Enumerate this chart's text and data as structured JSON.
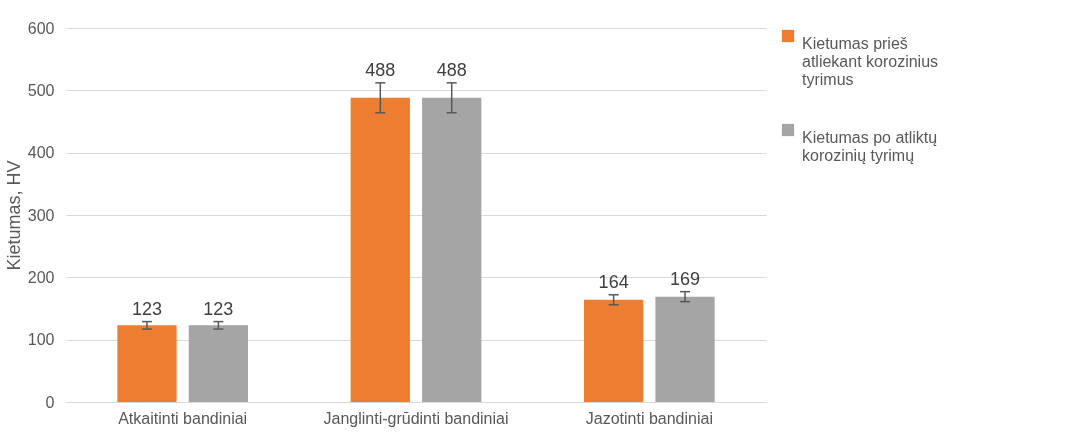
{
  "chart_data": {
    "type": "bar",
    "ylabel": "Kietumas, HV",
    "categories": [
      "Atkaitinti bandiniai",
      "Janglinti-grūdinti bandiniai",
      "Jazotinti bandiniai"
    ],
    "series": [
      {
        "name": "Kietumas prieš atliekant korozinius tyrimus",
        "color": "#ed7d31",
        "values": [
          123,
          488,
          164
        ],
        "errors": [
          6,
          24,
          8
        ]
      },
      {
        "name": "Kietumas po atliktų korozinių tyrimų",
        "color": "#a5a5a5",
        "values": [
          123,
          488,
          169
        ],
        "errors": [
          6,
          24,
          8
        ]
      }
    ],
    "ylim": [
      0,
      600
    ],
    "yticks": [
      0,
      100,
      200,
      300,
      400,
      500,
      600
    ],
    "grid": "y",
    "legend": "right",
    "data_labels": true
  }
}
